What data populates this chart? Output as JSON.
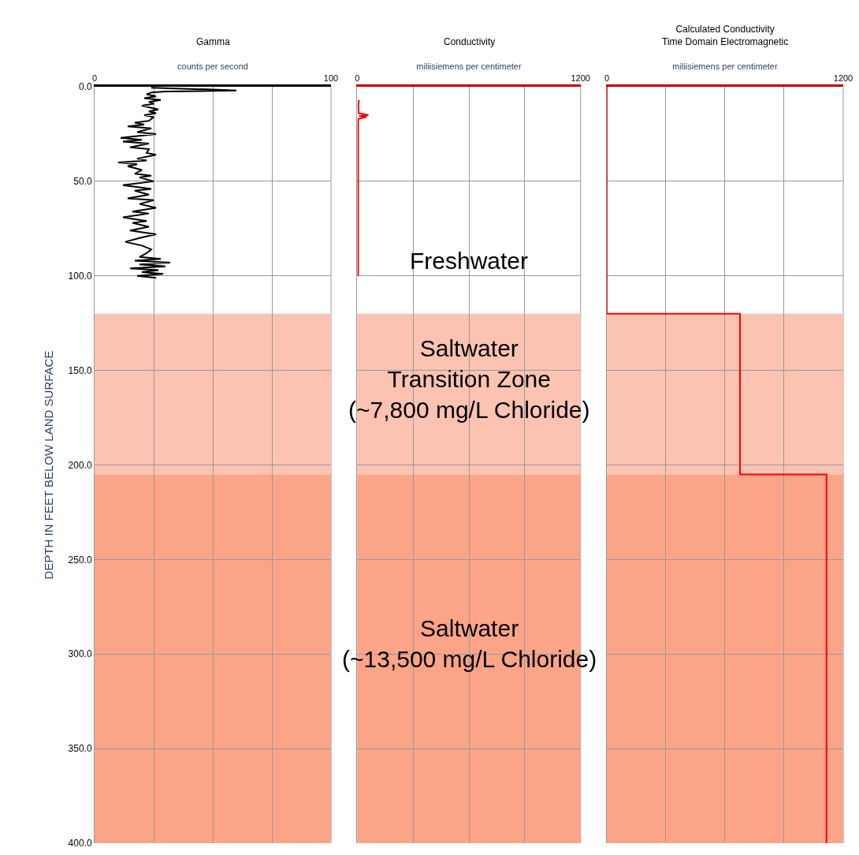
{
  "chart_data": [
    {
      "type": "line",
      "orientation": "horizontal",
      "title": "Gamma",
      "xlabel": "counts per second",
      "ylabel": "DEPTH IN FEET BELOW LAND SURFACE",
      "xlim": [
        0,
        100
      ],
      "xticks": [
        0,
        {
          "value": 25,
          "label": null
        },
        {
          "value": 50,
          "label": null
        },
        {
          "value": 75,
          "label": null
        },
        100
      ],
      "ylim": [
        400,
        0
      ],
      "yticks": [
        {
          "value": 0,
          "label": "0.0"
        },
        {
          "value": 50,
          "label": "50.0"
        },
        {
          "value": 100,
          "label": "100.0"
        },
        {
          "value": 150,
          "label": "150.0"
        },
        {
          "value": 200,
          "label": "200.0"
        },
        {
          "value": 250,
          "label": "250.0"
        },
        {
          "value": 300,
          "label": "300.0"
        },
        {
          "value": 350,
          "label": "350.0"
        },
        {
          "value": 400,
          "label": "400.0"
        }
      ],
      "grid": true,
      "series": [
        {
          "color": "#000000",
          "x": [
            0.5,
            1.5,
            2,
            2.5,
            3,
            4,
            5,
            6,
            7,
            8,
            9,
            10,
            12,
            13,
            14,
            15,
            16,
            18,
            19,
            20,
            21,
            22,
            24,
            25,
            27,
            28,
            29,
            30,
            32,
            33,
            35,
            36,
            38,
            39,
            40,
            41,
            42,
            44,
            46,
            47,
            48,
            50,
            52,
            54,
            55,
            57,
            59,
            60,
            62,
            64,
            66,
            67,
            69,
            71,
            72,
            74,
            76,
            78,
            80,
            82,
            84,
            86,
            88,
            90,
            91,
            92,
            93,
            94,
            95,
            96,
            97,
            98,
            99,
            100,
            101
          ],
          "values": [
            24,
            50,
            60,
            30,
            24,
            22,
            26,
            21,
            28,
            23,
            25,
            20,
            27,
            23,
            26,
            21,
            25,
            23,
            17,
            21,
            14,
            24,
            18,
            26,
            11,
            20,
            12,
            23,
            15,
            23,
            22,
            26,
            18,
            22,
            10,
            18,
            14,
            20,
            17,
            24,
            19,
            25,
            12,
            24,
            17,
            23,
            14,
            25,
            19,
            26,
            16,
            23,
            12,
            22,
            16,
            23,
            15,
            26,
            19,
            13,
            20,
            24,
            22,
            19,
            28,
            17,
            32,
            19,
            30,
            15,
            27,
            20,
            29,
            18,
            26
          ]
        }
      ],
      "bands": [
        {
          "axis": "y",
          "from": 120,
          "to": 205,
          "color": "#fcc3b3"
        },
        {
          "axis": "y",
          "from": 205,
          "to": 400,
          "color": "#fca488"
        }
      ]
    },
    {
      "type": "line",
      "orientation": "horizontal",
      "title": "Conductivity",
      "xlabel": "miliisiemens per centimeter",
      "tick_labels": "x",
      "xlim": [
        0,
        1200
      ],
      "xticks": [
        0,
        {
          "value": 300,
          "label": null
        },
        {
          "value": 600,
          "label": null
        },
        {
          "value": 900,
          "label": null
        },
        1200
      ],
      "ylim": [
        400,
        0
      ],
      "yticks": [
        {
          "value": 0,
          "label": null
        },
        {
          "value": 50,
          "label": null
        },
        {
          "value": 100,
          "label": null
        },
        {
          "value": 150,
          "label": null
        },
        {
          "value": 200,
          "label": null
        },
        {
          "value": 250,
          "label": null
        },
        {
          "value": 300,
          "label": null
        },
        {
          "value": 350,
          "label": null
        },
        {
          "value": 400,
          "label": null
        }
      ],
      "grid": true,
      "series": [
        {
          "color": "#ff0000",
          "x": [
            7,
            8,
            10,
            14,
            15,
            15.5,
            16,
            17,
            20,
            50,
            100
          ],
          "values": [
            10,
            8,
            6,
            8,
            60,
            10,
            50,
            6,
            5,
            5,
            5
          ]
        }
      ],
      "bands": [
        {
          "axis": "y",
          "from": 120,
          "to": 205,
          "color": "#fcc3b3",
          "label": "Saltwater\nTransition Zone\n(~7,800 mg/L Chloride)"
        },
        {
          "axis": "y",
          "from": 205,
          "to": 400,
          "color": "#fca488",
          "label": "Saltwater\n(~13,500 mg/L Chloride)"
        }
      ],
      "annotations": [
        "Freshwater"
      ]
    },
    {
      "type": "line",
      "orientation": "horizontal",
      "title": "Calculated Conductivity\nTime Domain Electromagnetic",
      "xlabel": "miliisiemens per centimeter",
      "tick_labels": "x",
      "xlim": [
        0,
        1200
      ],
      "xticks": [
        0,
        {
          "value": 300,
          "label": null
        },
        {
          "value": 600,
          "label": null
        },
        {
          "value": 900,
          "label": null
        },
        1200
      ],
      "ylim": [
        400,
        0
      ],
      "yticks": [
        {
          "value": 0,
          "label": null
        },
        {
          "value": 50,
          "label": null
        },
        {
          "value": 100,
          "label": null
        },
        {
          "value": 150,
          "label": null
        },
        {
          "value": 200,
          "label": null
        },
        {
          "value": 250,
          "label": null
        },
        {
          "value": 300,
          "label": null
        },
        {
          "value": 350,
          "label": null
        },
        {
          "value": 400,
          "label": null
        }
      ],
      "grid": true,
      "series": [
        {
          "color": "#ff0000",
          "x": [
            0,
            120,
            120,
            205,
            205,
            400
          ],
          "values": [
            0,
            0,
            676,
            676,
            1115,
            1115
          ]
        }
      ],
      "bands": [
        {
          "axis": "y",
          "from": 120,
          "to": 205,
          "color": "#fcc3b3"
        },
        {
          "axis": "y",
          "from": 205,
          "to": 400,
          "color": "#fca488"
        }
      ]
    }
  ]
}
